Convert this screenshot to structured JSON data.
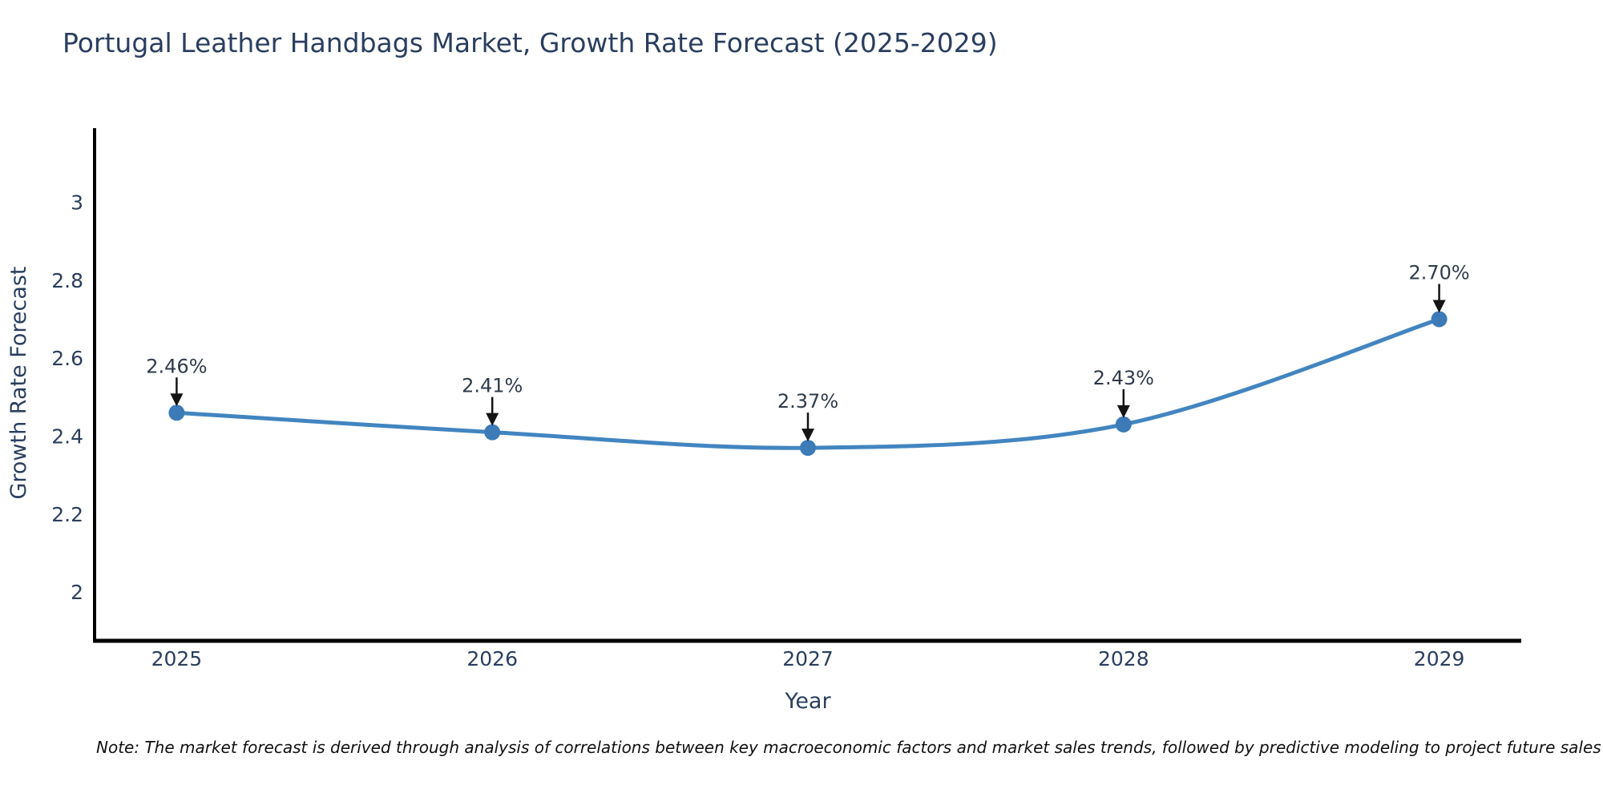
{
  "title": "Portugal Leather Handbags Market, Growth Rate Forecast (2025-2029)",
  "note": "Note: The market forecast is derived through analysis of correlations between key macroeconomic factors and market sales trends, followed by predictive modeling to project future sales",
  "chart_data": {
    "type": "line",
    "title": "Portugal Leather Handbags Market, Growth Rate Forecast (2025-2029)",
    "xlabel": "Year",
    "ylabel": "Growth Rate Forecast",
    "x": [
      2025,
      2026,
      2027,
      2028,
      2029
    ],
    "values": [
      2.46,
      2.41,
      2.37,
      2.43,
      2.7
    ],
    "point_labels": [
      "2.46%",
      "2.41%",
      "2.37%",
      "2.43%",
      "2.70%"
    ],
    "yticks": [
      2,
      2.2,
      2.4,
      2.6,
      2.8,
      3
    ],
    "ylim": [
      1.875,
      3.19
    ],
    "xlim": [
      2024.74,
      2029.26
    ],
    "line_shape": "spline",
    "grid": false,
    "legend": "none",
    "colors": {
      "line": "#4285c0",
      "marker": "#3c7ab8",
      "axis": "#000000",
      "axis_text": "#2a3f5f",
      "annotation_text": "#2f3b4c",
      "arrow": "#141414",
      "background": "#ffffff"
    }
  }
}
